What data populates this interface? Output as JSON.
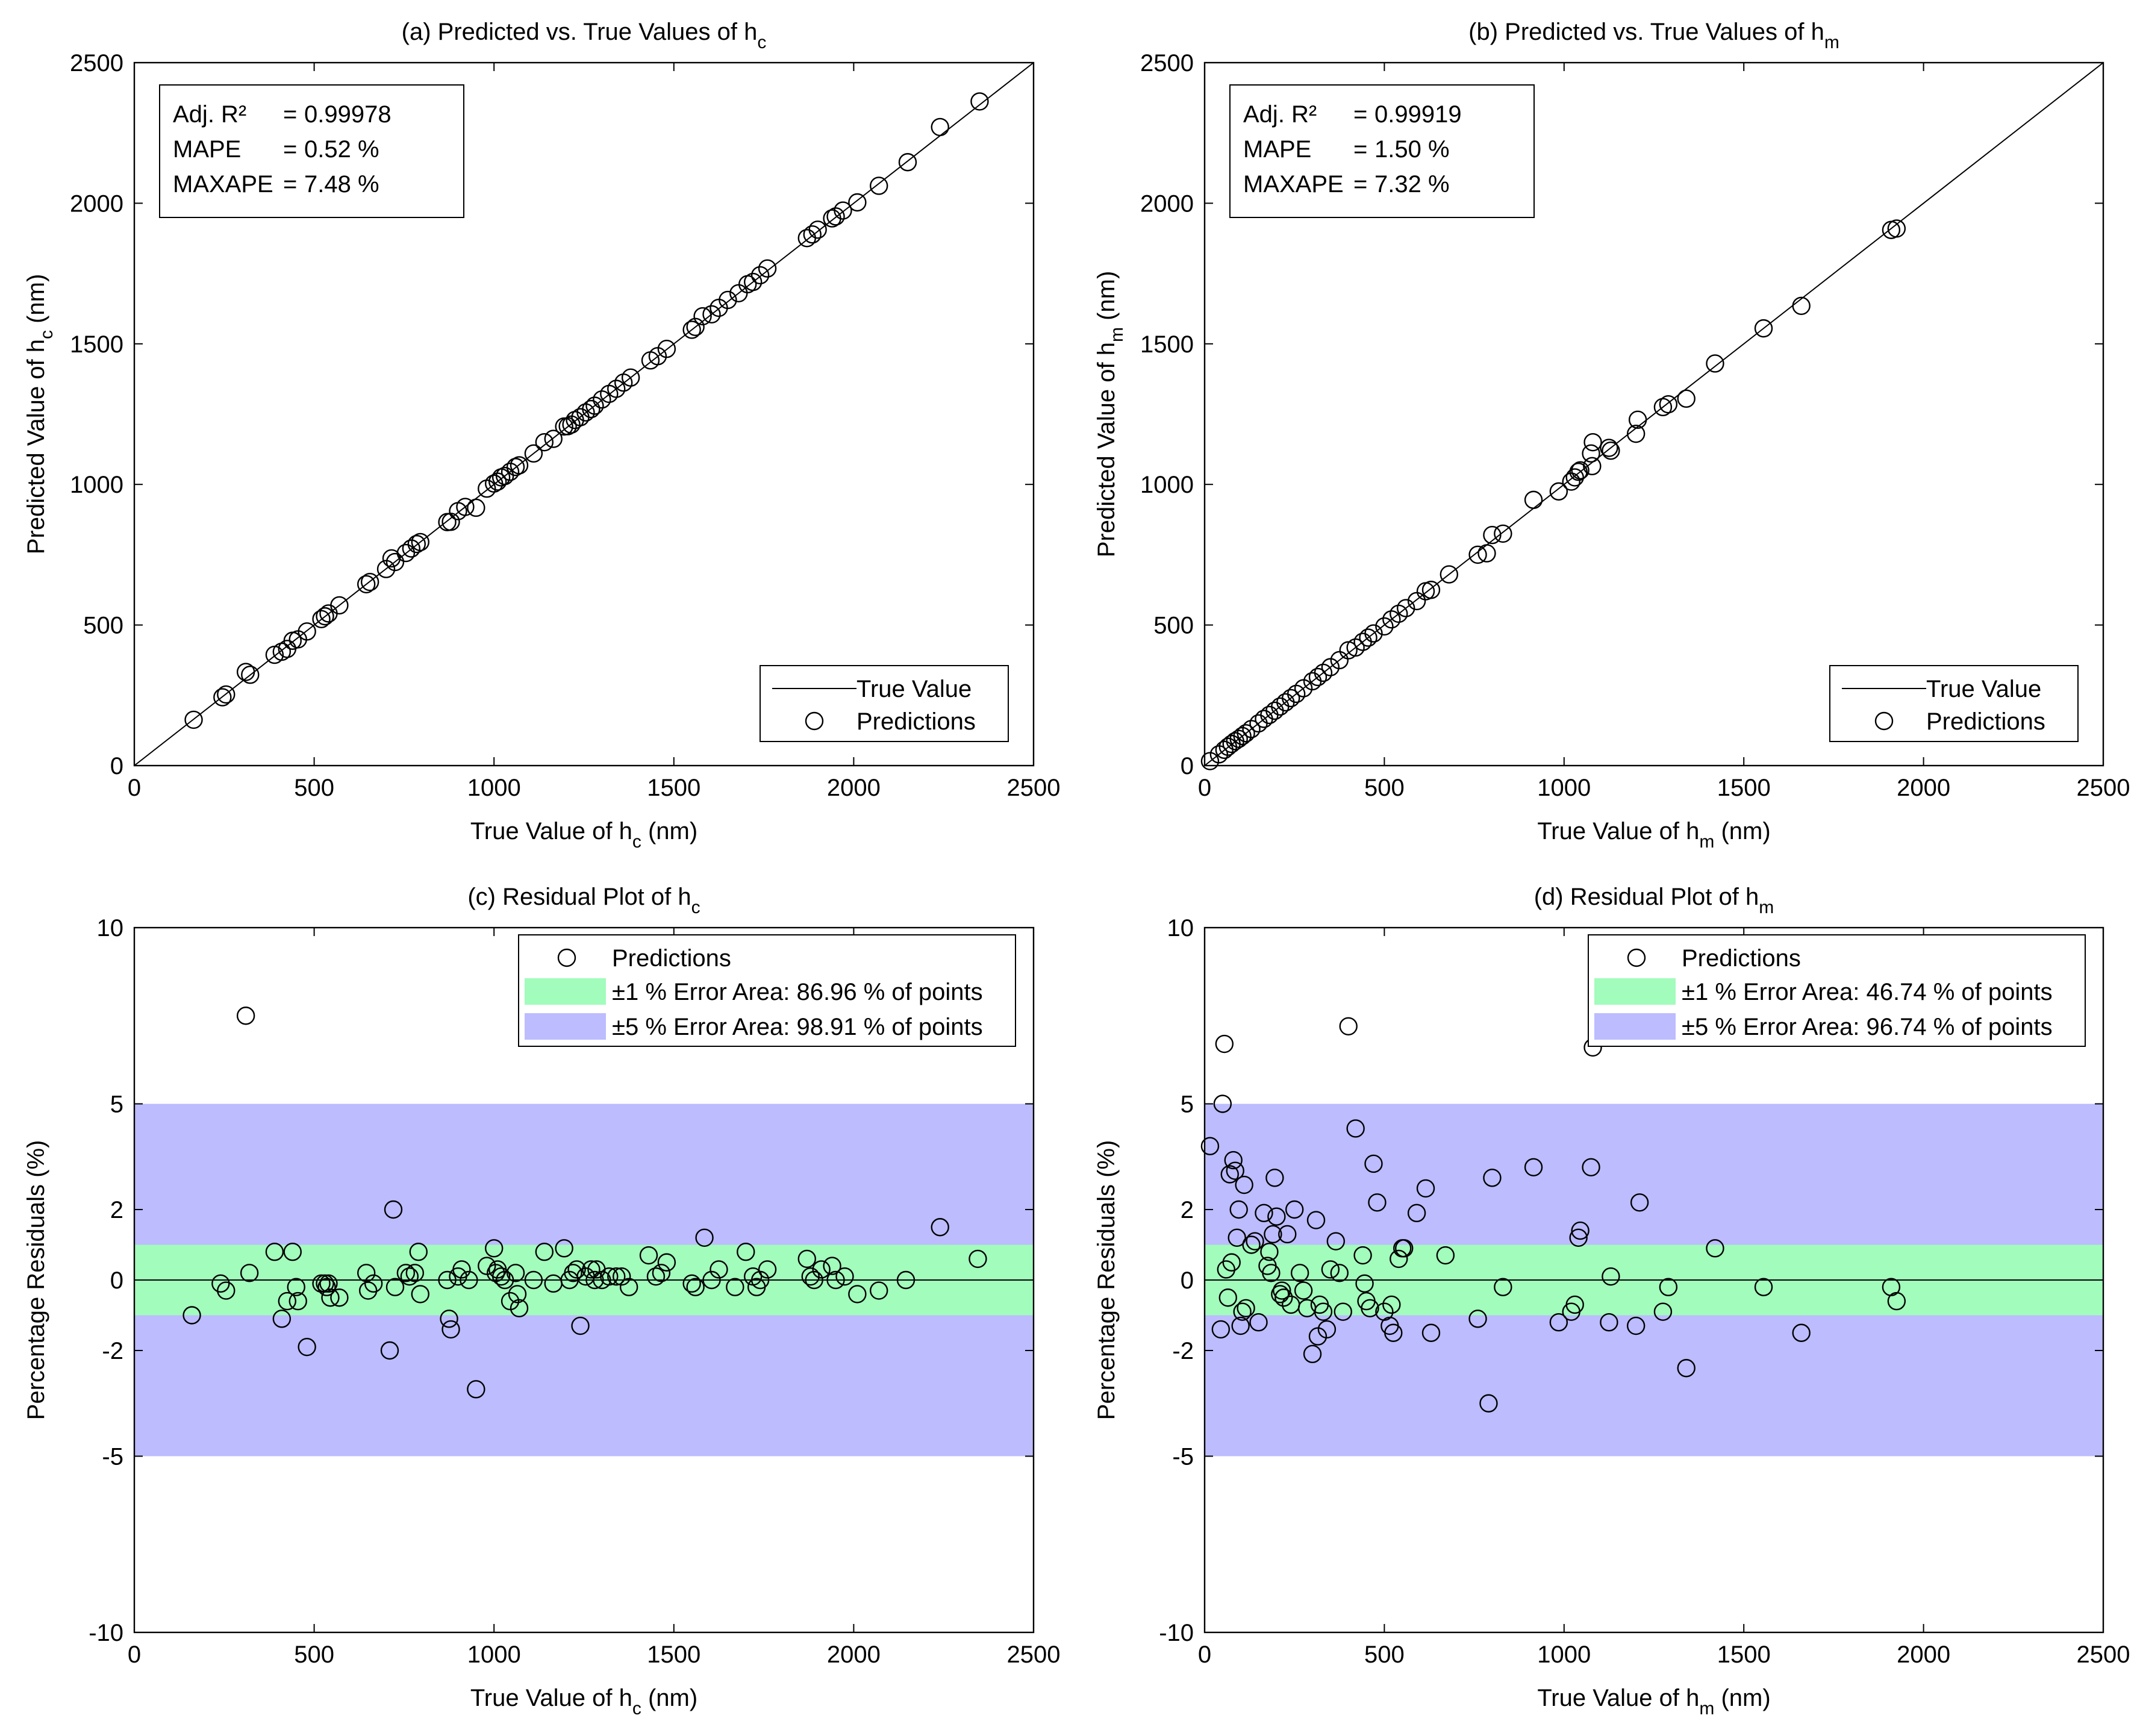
{
  "chart_data": [
    {
      "id": "a",
      "type": "scatter",
      "title": "(a) Predicted vs. True Values of h",
      "title_sub": "c",
      "xlabel": "True Value of h",
      "xlabel_sub": "c",
      "xlabel_unit": " (nm)",
      "ylabel": "Predicted Value of h",
      "ylabel_sub": "c",
      "ylabel_unit": " (nm)",
      "xlim": [
        0,
        2500
      ],
      "ylim": [
        0,
        2500
      ],
      "xticks": [
        "0",
        "500",
        "1000",
        "1500",
        "2000",
        "2500"
      ],
      "xtick_values": [
        0,
        500,
        1000,
        1500,
        2000,
        2500
      ],
      "yticks": [
        "0",
        "500",
        "1000",
        "1500",
        "2000",
        "2500"
      ],
      "ytick_values": [
        0,
        500,
        1000,
        1500,
        2000,
        2500
      ],
      "reference_line": {
        "type": "identity",
        "name": "True Value"
      },
      "series": [
        {
          "name": "Predictions",
          "marker": "circle",
          "x": [
            165,
            245,
            255,
            310,
            322,
            390,
            410,
            425,
            440,
            455,
            480,
            520,
            530,
            540,
            570,
            645,
            655,
            700,
            715,
            725,
            755,
            770,
            785,
            795,
            870,
            880,
            900,
            920,
            950,
            980,
            1000,
            1010,
            1020,
            1030,
            1045,
            1060,
            1070,
            1110,
            1140,
            1165,
            1195,
            1205,
            1215,
            1225,
            1240,
            1255,
            1270,
            1280,
            1300,
            1320,
            1340,
            1360,
            1380,
            1435,
            1455,
            1480,
            1550,
            1560,
            1580,
            1605,
            1625,
            1650,
            1680,
            1705,
            1720,
            1740,
            1760,
            1870,
            1885,
            1900,
            1940,
            1950,
            1970,
            2010,
            2070,
            2150,
            2240,
            2350
          ],
          "y": [
            163,
            243,
            253,
            333,
            323,
            394,
            405,
            415,
            444,
            449,
            477,
            521,
            531,
            541,
            570,
            645,
            653,
            699,
            737,
            724,
            756,
            772,
            788,
            795,
            866,
            867,
            905,
            920,
            917,
            985,
            1003,
            1010,
            1025,
            1030,
            1045,
            1062,
            1068,
            1110,
            1150,
            1162,
            1206,
            1207,
            1213,
            1229,
            1239,
            1256,
            1268,
            1280,
            1302,
            1322,
            1340,
            1362,
            1380,
            1441,
            1456,
            1482,
            1550,
            1560,
            1598,
            1605,
            1628,
            1656,
            1680,
            1712,
            1720,
            1744,
            1768,
            1876,
            1889,
            1906,
            1946,
            1953,
            1974,
            2003,
            2062,
            2146,
            2271,
            2362
          ]
        }
      ],
      "stats": {
        "r2_label": "Adj. R²",
        "r2_eq": "=",
        "r2_value": "0.99978",
        "mape_label": "MAPE",
        "mape_eq": "=",
        "mape_value": "0.52 %",
        "maxape_label": "MAXAPE",
        "maxape_eq": "=",
        "maxape_value": "7.48 %"
      },
      "legend": {
        "placement": "bottom-right",
        "line_label": "True Value",
        "marker_label": "Predictions"
      }
    },
    {
      "id": "b",
      "type": "scatter",
      "title": "(b) Predicted vs. True Values of h",
      "title_sub": "m",
      "xlabel": "True Value of h",
      "xlabel_sub": "m",
      "xlabel_unit": " (nm)",
      "ylabel": "Predicted Value of h",
      "ylabel_sub": "m",
      "ylabel_unit": " (nm)",
      "xlim": [
        0,
        2500
      ],
      "ylim": [
        0,
        2500
      ],
      "xticks": [
        "0",
        "500",
        "1000",
        "1500",
        "2000",
        "2500"
      ],
      "xtick_values": [
        0,
        500,
        1000,
        1500,
        2000,
        2500
      ],
      "yticks": [
        "0",
        "500",
        "1000",
        "1500",
        "2000",
        "2500"
      ],
      "ytick_values": [
        0,
        500,
        1000,
        1500,
        2000,
        2500
      ],
      "reference_line": {
        "type": "identity",
        "name": "True Value"
      },
      "series": [
        {
          "name": "Predictions",
          "marker": "circle",
          "x": [
            15,
            40,
            55,
            65,
            75,
            85,
            95,
            105,
            115,
            130,
            150,
            165,
            180,
            195,
            210,
            225,
            240,
            255,
            275,
            300,
            315,
            330,
            350,
            375,
            400,
            420,
            440,
            455,
            470,
            500,
            520,
            540,
            560,
            590,
            615,
            630,
            680,
            760,
            785,
            800,
            830,
            915,
            985,
            1020,
            1030,
            1040,
            1045,
            1075,
            1078,
            1080,
            1125,
            1130,
            1200,
            1205,
            1275,
            1290,
            1340,
            1420,
            1555,
            1660,
            1910,
            1925
          ],
          "y": [
            16,
            40,
            56,
            67,
            77,
            87,
            95,
            105,
            115,
            130,
            150,
            166,
            180,
            195,
            210,
            225,
            240,
            255,
            275,
            300,
            315,
            330,
            350,
            375,
            410,
            420,
            440,
            455,
            470,
            495,
            520,
            540,
            560,
            585,
            620,
            625,
            680,
            750,
            755,
            820,
            825,
            945,
            975,
            1010,
            1025,
            1045,
            1050,
            1110,
            1065,
            1150,
            1130,
            1120,
            1180,
            1230,
            1275,
            1285,
            1305,
            1430,
            1555,
            1635,
            1905,
            1910
          ]
        }
      ],
      "stats": {
        "r2_label": "Adj. R²",
        "r2_eq": "=",
        "r2_value": "0.99919",
        "mape_label": "MAPE",
        "mape_eq": "=",
        "mape_value": "1.50 %",
        "maxape_label": "MAXAPE",
        "maxape_eq": "=",
        "maxape_value": "7.32 %"
      },
      "legend": {
        "placement": "bottom-right",
        "line_label": "True Value",
        "marker_label": "Predictions"
      }
    },
    {
      "id": "c",
      "type": "scatter",
      "title": "(c)  Residual Plot of h",
      "title_sub": "c",
      "xlabel": "True Value of h",
      "xlabel_sub": "c",
      "xlabel_unit": " (nm)",
      "ylabel": "Percentage Residuals (%)",
      "xlim": [
        0,
        2500
      ],
      "ylim": [
        -10,
        10
      ],
      "xticks": [
        "0",
        "500",
        "1000",
        "1500",
        "2000",
        "2500"
      ],
      "xtick_values": [
        0,
        500,
        1000,
        1500,
        2000,
        2500
      ],
      "yticks": [
        "-10",
        "-5",
        "-2",
        "0",
        "2",
        "5",
        "10"
      ],
      "ytick_values": [
        -10,
        -5,
        -2,
        0,
        2,
        5,
        10
      ],
      "bands": [
        {
          "from": -5,
          "to": 5,
          "color": "#bcbcff",
          "label": "±5 % Error Area: 98.91 % of points"
        },
        {
          "from": -1,
          "to": 1,
          "color": "#a2fcbc",
          "label": "±1 % Error Area: 86.96 % of points"
        }
      ],
      "series": [
        {
          "name": "Predictions",
          "marker": "circle",
          "x": [
            160,
            240,
            255,
            310,
            320,
            390,
            410,
            425,
            440,
            450,
            455,
            480,
            520,
            530,
            535,
            540,
            545,
            570,
            645,
            650,
            665,
            710,
            720,
            725,
            755,
            765,
            780,
            790,
            795,
            870,
            875,
            880,
            900,
            910,
            930,
            950,
            980,
            1000,
            1005,
            1010,
            1020,
            1030,
            1045,
            1060,
            1065,
            1070,
            1110,
            1140,
            1165,
            1195,
            1210,
            1220,
            1230,
            1240,
            1255,
            1270,
            1280,
            1285,
            1300,
            1320,
            1340,
            1355,
            1375,
            1430,
            1450,
            1465,
            1480,
            1550,
            1560,
            1585,
            1605,
            1625,
            1670,
            1700,
            1720,
            1730,
            1740,
            1760,
            1870,
            1880,
            1890,
            1910,
            1940,
            1950,
            1975,
            2010,
            2070,
            2145,
            2240,
            2345
          ],
          "y": [
            -1.0,
            -0.1,
            -0.3,
            7.5,
            0.2,
            0.8,
            -1.1,
            -0.6,
            0.8,
            -0.2,
            -0.6,
            -1.9,
            -0.1,
            -0.1,
            -0.2,
            -0.1,
            -0.5,
            -0.5,
            0.2,
            -0.3,
            -0.1,
            -2.0,
            2.0,
            -0.2,
            0.2,
            0.1,
            0.2,
            0.8,
            -0.4,
            0.0,
            -1.1,
            -1.4,
            0.1,
            0.3,
            0.0,
            -3.1,
            0.4,
            0.9,
            0.2,
            0.3,
            0.1,
            0.0,
            -0.6,
            0.2,
            -0.4,
            -0.8,
            0.0,
            0.8,
            -0.1,
            0.9,
            0.0,
            0.2,
            0.3,
            -1.3,
            0.1,
            0.3,
            0.0,
            0.3,
            0.0,
            0.1,
            0.1,
            0.1,
            -0.2,
            0.7,
            0.1,
            0.2,
            0.5,
            -0.1,
            -0.2,
            1.2,
            0.0,
            0.3,
            -0.2,
            0.8,
            0.1,
            -0.2,
            0.0,
            0.3,
            0.6,
            0.1,
            0.0,
            0.3,
            0.4,
            0.0,
            0.1,
            -0.4,
            -0.3,
            0.0,
            1.5,
            0.6
          ]
        }
      ],
      "legend": {
        "placement": "top-right",
        "marker_label": "Predictions",
        "band1_label_pre": "±1 % Error Area: 86.96 % of points",
        "band5_label": "±5 % Error Area: 98.91 % of points"
      }
    },
    {
      "id": "d",
      "type": "scatter",
      "title": "(d)  Residual Plot of h",
      "title_sub": "m",
      "xlabel": "True Value of h",
      "xlabel_sub": "m",
      "xlabel_unit": " (nm)",
      "ylabel": "Percentage Residuals (%)",
      "xlim": [
        0,
        2500
      ],
      "ylim": [
        -10,
        10
      ],
      "xticks": [
        "0",
        "500",
        "1000",
        "1500",
        "2000",
        "2500"
      ],
      "xtick_values": [
        0,
        500,
        1000,
        1500,
        2000,
        2500
      ],
      "yticks": [
        "-10",
        "-5",
        "-2",
        "0",
        "2",
        "5",
        "10"
      ],
      "ytick_values": [
        -10,
        -5,
        -2,
        0,
        2,
        5,
        10
      ],
      "bands": [
        {
          "from": -5,
          "to": 5,
          "color": "#bcbcff",
          "label": "±5 % Error Area: 96.74 % of points"
        },
        {
          "from": -1,
          "to": 1,
          "color": "#a2fcbc",
          "label": "±1 % Error Area: 46.74 % of points"
        }
      ],
      "series": [
        {
          "name": "Predictions",
          "marker": "circle",
          "x": [
            15,
            45,
            50,
            55,
            60,
            65,
            70,
            75,
            80,
            85,
            90,
            95,
            100,
            105,
            110,
            115,
            130,
            140,
            150,
            165,
            175,
            180,
            185,
            190,
            195,
            200,
            210,
            215,
            220,
            230,
            240,
            250,
            265,
            275,
            285,
            300,
            310,
            315,
            320,
            330,
            340,
            350,
            365,
            375,
            385,
            400,
            420,
            440,
            445,
            450,
            460,
            470,
            480,
            500,
            515,
            520,
            525,
            540,
            550,
            555,
            590,
            615,
            630,
            670,
            760,
            790,
            800,
            830,
            915,
            985,
            1020,
            1030,
            1040,
            1045,
            1075,
            1080,
            1125,
            1130,
            1200,
            1210,
            1275,
            1290,
            1340,
            1420,
            1555,
            1660,
            1910,
            1925
          ],
          "y": [
            3.8,
            -1.4,
            5.0,
            6.7,
            0.3,
            -0.5,
            3.0,
            0.5,
            3.4,
            3.1,
            1.2,
            2.0,
            -1.3,
            -0.9,
            2.7,
            -0.8,
            1.0,
            1.1,
            -1.2,
            1.9,
            0.4,
            0.8,
            0.2,
            1.3,
            2.9,
            1.8,
            -0.4,
            -0.3,
            -0.5,
            1.3,
            -0.7,
            2.0,
            0.2,
            -0.3,
            -0.8,
            -2.1,
            1.7,
            -1.6,
            -0.7,
            -0.9,
            -1.4,
            0.3,
            1.1,
            0.2,
            -0.9,
            7.2,
            4.3,
            0.7,
            -0.1,
            -0.6,
            -0.8,
            3.3,
            2.2,
            -0.9,
            -1.3,
            -0.7,
            -1.5,
            0.6,
            0.9,
            0.9,
            1.9,
            2.6,
            -1.5,
            0.7,
            -1.1,
            -3.5,
            2.9,
            -0.2,
            3.2,
            -1.2,
            -0.9,
            -0.7,
            1.2,
            1.4,
            3.2,
            6.6,
            -1.2,
            0.1,
            -1.3,
            2.2,
            -0.9,
            -0.2,
            -2.5,
            0.9,
            -0.2,
            -1.5,
            -0.2,
            -0.6
          ]
        }
      ],
      "legend": {
        "placement": "top-right",
        "marker_label": "Predictions",
        "band1_label_pre": "±1 % Error Area: 46.74 % of points",
        "band5_label": "±5 % Error Area: 96.74 % of points"
      }
    }
  ]
}
